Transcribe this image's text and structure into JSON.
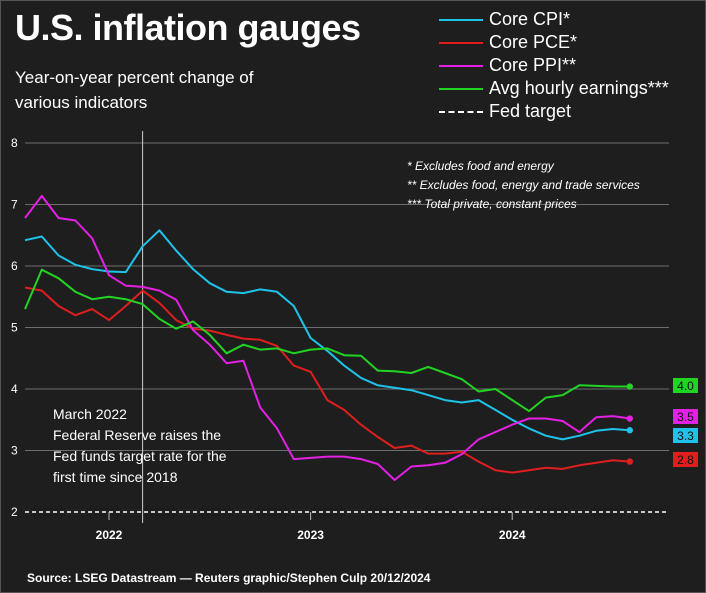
{
  "title": "U.S. inflation gauges",
  "subtitle": "Year-on-year percent change of various indicators",
  "source": "Source: LSEG Datastream — Reuters graphic/Stephen Culp 20/12/2024",
  "notes": [
    "* Excludes food and energy",
    "** Excludes food, energy and trade services",
    "*** Total private, constant prices"
  ],
  "annotation": [
    "March 2022",
    "Federal Reserve raises the",
    "Fed funds target rate for the",
    "first time since 2018"
  ],
  "legend": [
    {
      "label": "Core CPI*",
      "color": "#1ec3ea",
      "dashed": false
    },
    {
      "label": "Core PCE*",
      "color": "#e01e1e",
      "dashed": false
    },
    {
      "label": "Core PPI**",
      "color": "#e320e3",
      "dashed": false
    },
    {
      "label": "Avg hourly earnings***",
      "color": "#22d422",
      "dashed": false
    },
    {
      "label": "Fed target",
      "color": "#ffffff",
      "dashed": true
    }
  ],
  "chart_data": {
    "type": "line",
    "title": "U.S. inflation gauges",
    "subtitle": "Year-on-year percent change of various indicators",
    "x_start": "2021-08",
    "x_ticks": [
      "2022",
      "2023",
      "2024"
    ],
    "y_ticks": [
      "2",
      "3",
      "4",
      "5",
      "6",
      "7",
      "8"
    ],
    "ylim": [
      2,
      8
    ],
    "grid": true,
    "fed_target": 2,
    "march_2022_marker": "2022-03",
    "series": [
      {
        "name": "Core CPI*",
        "color": "#1ec3ea",
        "end_label": "3.3",
        "values": [
          6.42,
          6.48,
          6.17,
          6.02,
          5.95,
          5.91,
          5.9,
          6.32,
          6.58,
          6.25,
          5.95,
          5.72,
          5.58,
          5.56,
          5.62,
          5.58,
          5.35,
          4.83,
          4.62,
          4.38,
          4.18,
          4.06,
          4.02,
          3.98,
          3.9,
          3.82,
          3.78,
          3.82,
          3.66,
          3.5,
          3.36,
          3.24,
          3.18,
          3.24,
          3.32,
          3.35,
          3.33
        ]
      },
      {
        "name": "Core PCE*",
        "color": "#e01e1e",
        "end_label": "2.8",
        "values": [
          5.65,
          5.6,
          5.35,
          5.2,
          5.3,
          5.12,
          5.35,
          5.6,
          5.4,
          5.12,
          4.98,
          4.95,
          4.88,
          4.82,
          4.8,
          4.7,
          4.38,
          4.28,
          3.82,
          3.66,
          3.42,
          3.22,
          3.04,
          3.08,
          2.95,
          2.95,
          2.98,
          2.82,
          2.68,
          2.64,
          2.68,
          2.72,
          2.7,
          2.76,
          2.8,
          2.84,
          2.82
        ]
      },
      {
        "name": "Core PPI**",
        "color": "#e320e3",
        "end_label": "3.5",
        "values": [
          6.78,
          7.14,
          6.78,
          6.74,
          6.45,
          5.85,
          5.68,
          5.66,
          5.6,
          5.45,
          4.96,
          4.72,
          4.42,
          4.46,
          3.7,
          3.36,
          2.86,
          2.88,
          2.9,
          2.9,
          2.86,
          2.78,
          2.52,
          2.74,
          2.76,
          2.8,
          2.94,
          3.18,
          3.3,
          3.42,
          3.52,
          3.52,
          3.48,
          3.3,
          3.54,
          3.56,
          3.52
        ]
      },
      {
        "name": "Avg hourly earnings***",
        "color": "#22d422",
        "end_label": "4.0",
        "values": [
          5.3,
          5.94,
          5.8,
          5.58,
          5.46,
          5.5,
          5.46,
          5.38,
          5.14,
          4.98,
          5.1,
          4.88,
          4.58,
          4.72,
          4.64,
          4.66,
          4.58,
          4.64,
          4.66,
          4.55,
          4.54,
          4.3,
          4.29,
          4.26,
          4.36,
          4.26,
          4.16,
          3.96,
          4.0,
          3.82,
          3.64,
          3.86,
          3.9,
          4.06,
          4.05,
          4.04,
          4.04
        ]
      }
    ]
  }
}
